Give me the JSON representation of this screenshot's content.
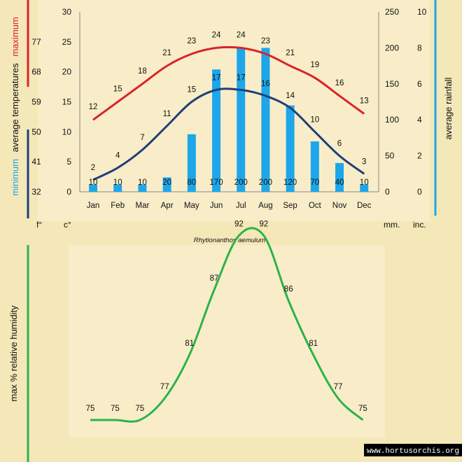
{
  "chart_data": [
    {
      "type": "bar+line",
      "species": "Rhytionanthos aemulum",
      "categories": [
        "Jan",
        "Feb",
        "Mar",
        "Apr",
        "May",
        "Jun",
        "Jul",
        "Aug",
        "Sep",
        "Oct",
        "Nov",
        "Dec"
      ],
      "rainfall_mm": [
        10,
        10,
        10,
        20,
        80,
        170,
        200,
        200,
        120,
        70,
        40,
        10
      ],
      "max_temp_c": [
        12,
        15,
        18,
        21,
        23,
        24,
        24,
        23,
        21,
        19,
        16,
        13
      ],
      "min_temp_c": [
        2,
        4,
        7,
        11,
        15,
        17,
        17,
        16,
        14,
        10,
        6,
        3
      ],
      "axes": {
        "fahrenheit_ticks": [
          "77",
          "68",
          "59",
          "50",
          "41",
          "32"
        ],
        "celsius_ticks": [
          "30",
          "25",
          "20",
          "15",
          "10",
          "5",
          "0"
        ],
        "mm_ticks": [
          "250",
          "200",
          "150",
          "100",
          "50",
          "0"
        ],
        "inch_ticks": [
          "10",
          "8",
          "6",
          "4",
          "2",
          "0"
        ],
        "ylim_celsius": [
          0,
          30
        ],
        "ylim_mm": [
          0,
          250
        ]
      },
      "labels": {
        "maximum": "maximum",
        "average_temperatures": "average temperatures",
        "minimum": "minimum",
        "average_rainfall": "average rainfall",
        "unit_f": "f°",
        "unit_c": "c°",
        "unit_mm": "mm.",
        "unit_inc": "inc."
      },
      "colors": {
        "rainfall": "#1da7ea",
        "max_temp": "#d9232a",
        "min_temp": "#1f3f7a",
        "axis_red": "#d9232a",
        "axis_navy": "#1f3f7a",
        "axis_blue": "#1da7ea"
      }
    },
    {
      "type": "line",
      "categories": [
        "Jan",
        "Feb",
        "Mar",
        "Apr",
        "May",
        "Jun",
        "Jul",
        "Aug",
        "Sep",
        "Oct",
        "Nov",
        "Dec"
      ],
      "humidity": [
        75,
        75,
        75,
        77,
        81,
        87,
        92,
        92,
        86,
        81,
        77,
        75
      ],
      "ylabel": "max  %  relative humidity",
      "colors": {
        "line": "#2bb34a",
        "axis": "#2bb34a"
      }
    }
  ],
  "credit": "www.hortusorchis.org"
}
